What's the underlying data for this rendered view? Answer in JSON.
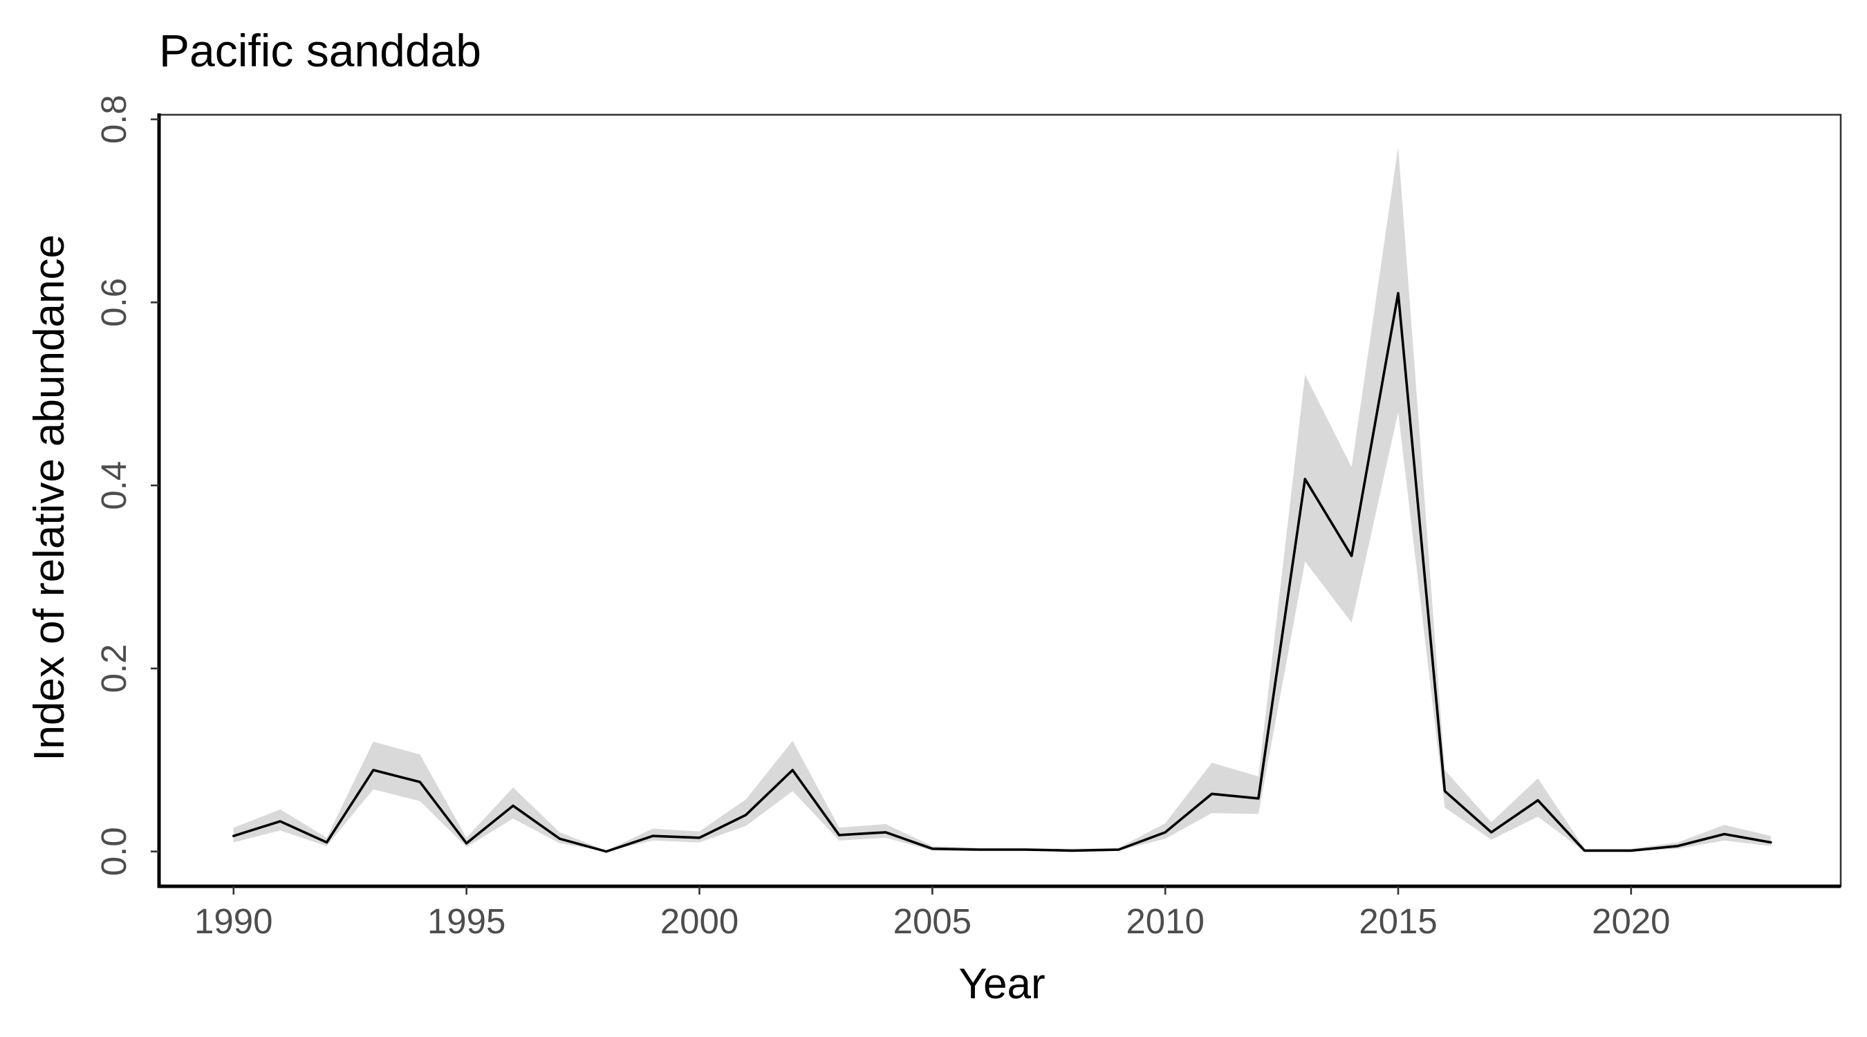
{
  "chart_data": {
    "type": "line",
    "title": "Pacific sanddab",
    "xlabel": "Year",
    "ylabel": "Index of relative abundance",
    "xlim": [
      1988.4,
      2024.5
    ],
    "ylim": [
      -0.038,
      0.805
    ],
    "x_ticks": [
      1990,
      1995,
      2000,
      2005,
      2010,
      2015,
      2020
    ],
    "x_tick_labels": [
      "1990",
      "1995",
      "2000",
      "2005",
      "2010",
      "2015",
      "2020"
    ],
    "y_ticks": [
      0.0,
      0.2,
      0.4,
      0.6,
      0.8
    ],
    "y_tick_labels": [
      "0.0",
      "0.2",
      "0.4",
      "0.6",
      "0.8"
    ],
    "grid": false,
    "colors": {
      "line": "#000000",
      "band": "#d9d9d9",
      "axis": "#333333",
      "tick_text": "#4d4d4d"
    },
    "series": [
      {
        "x": [
          1990,
          1991,
          1992,
          1993,
          1994,
          1995,
          1996,
          1997,
          1998,
          1999,
          2000,
          2001,
          2002,
          2003,
          2004,
          2005,
          2006,
          2007,
          2008,
          2009,
          2010,
          2011,
          2012,
          2013,
          2014,
          2015,
          2016,
          2017,
          2018,
          2019,
          2020,
          2021,
          2022,
          2023
        ],
        "values": [
          0.017,
          0.033,
          0.01,
          0.089,
          0.076,
          0.009,
          0.05,
          0.014,
          0.0,
          0.017,
          0.015,
          0.04,
          0.089,
          0.018,
          0.021,
          0.003,
          0.002,
          0.002,
          0.001,
          0.002,
          0.021,
          0.063,
          0.058,
          0.407,
          0.323,
          0.61,
          0.066,
          0.021,
          0.056,
          0.001,
          0.001,
          0.006,
          0.019,
          0.01
        ],
        "lower": [
          0.01,
          0.023,
          0.006,
          0.068,
          0.055,
          0.005,
          0.036,
          0.009,
          0.0,
          0.012,
          0.01,
          0.028,
          0.066,
          0.012,
          0.015,
          0.001,
          0.001,
          0.001,
          0.0,
          0.001,
          0.014,
          0.042,
          0.041,
          0.317,
          0.25,
          0.48,
          0.048,
          0.013,
          0.038,
          0.0,
          0.0,
          0.003,
          0.012,
          0.006
        ],
        "upper": [
          0.026,
          0.046,
          0.015,
          0.12,
          0.106,
          0.015,
          0.07,
          0.021,
          0.001,
          0.025,
          0.022,
          0.057,
          0.121,
          0.026,
          0.03,
          0.006,
          0.004,
          0.004,
          0.003,
          0.004,
          0.031,
          0.097,
          0.082,
          0.521,
          0.42,
          0.77,
          0.089,
          0.032,
          0.08,
          0.003,
          0.003,
          0.01,
          0.029,
          0.017
        ]
      }
    ]
  }
}
